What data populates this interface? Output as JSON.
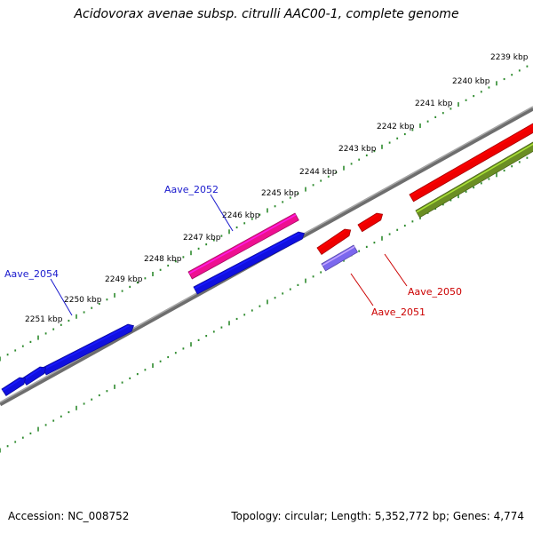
{
  "title": "Acidovorax avenae subsp. citrulli AAC00-1, complete genome",
  "footer": {
    "accession": "Accession: NC_008752",
    "summary": "Topology: circular; Length: 5,352,772 bp; Genes: 4,774"
  },
  "scale": {
    "labels": [
      "2239 kbp",
      "2240 kbp",
      "2241 kbp",
      "2242 kbp",
      "2243 kbp",
      "2244 kbp",
      "2245 kbp",
      "2246 kbp",
      "2247 kbp",
      "2248 kbp",
      "2249 kbp",
      "2250 kbp",
      "2251 kbp"
    ],
    "tick_color": "#2e8b2e",
    "backbone_color": "#808080"
  },
  "genes": [
    {
      "id": "Aave_2052",
      "label": "Aave_2052",
      "color": "#1a1acd"
    },
    {
      "id": "Aave_2054",
      "label": "Aave_2054",
      "color": "#1a1acd"
    },
    {
      "id": "Aave_2051",
      "label": "Aave_2051",
      "color": "#cc0000"
    },
    {
      "id": "Aave_2050",
      "label": "Aave_2050",
      "color": "#cc0000"
    }
  ],
  "feature_colors": {
    "blue": "#1010e0",
    "red": "#ee0000",
    "pink": "#ee1090",
    "olive": "#6b8e23",
    "violet": "#7b68ee"
  }
}
